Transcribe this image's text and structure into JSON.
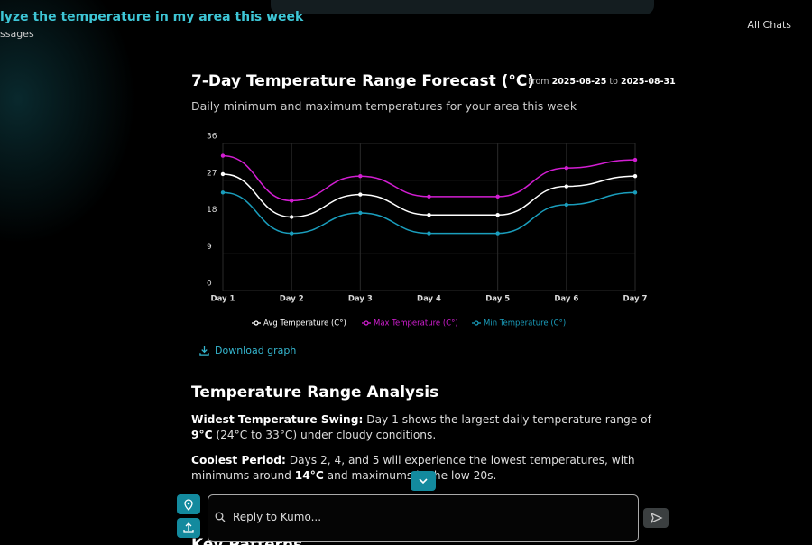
{
  "header": {
    "title": "lyze the temperature in my area this week",
    "subtitle": "ssages",
    "all_chats": "All Chats"
  },
  "chart_card": {
    "title": "7-Day Temperature Range Forecast (°C)",
    "from_label": "From",
    "from": "2025-08-25",
    "to_label": "to",
    "to": "2025-08-31",
    "subtitle": "Daily minimum and maximum temperatures for your area this week",
    "download": "Download graph"
  },
  "chart_data": {
    "type": "line",
    "categories": [
      "Day 1",
      "Day 2",
      "Day 3",
      "Day 4",
      "Day 5",
      "Day 6",
      "Day 7"
    ],
    "ylim": [
      0,
      36
    ],
    "yticks": [
      0,
      9,
      18,
      27,
      36
    ],
    "grid": true,
    "series": [
      {
        "name": "Avg Temperature (C°)",
        "color": "#ffffff",
        "values": [
          28.5,
          18,
          23.5,
          18.5,
          18.5,
          25.5,
          28
        ]
      },
      {
        "name": "Max Temperature (C°)",
        "color": "#d21ed2",
        "values": [
          33,
          22,
          28,
          23,
          23,
          30,
          32
        ]
      },
      {
        "name": "Min Temperature (C°)",
        "color": "#1a9ebd",
        "values": [
          24,
          14,
          19,
          14,
          14,
          21,
          24
        ]
      }
    ]
  },
  "analysis": {
    "heading": "Temperature Range Analysis",
    "paragraphs": [
      [
        "Widest Temperature Swing:",
        " Day 1 shows the largest daily temperature range of ",
        "9°C",
        " (24°C to 33°C) under cloudy conditions."
      ],
      [
        "Coolest Period:",
        " Days 2, 4, and 5 will experience the lowest temperatures, with minimums around ",
        "14°C",
        " and maximums in the low 20s."
      ]
    ],
    "next_heading": "Key Patterns"
  },
  "composer": {
    "placeholder": "Reply to Kumo..."
  }
}
